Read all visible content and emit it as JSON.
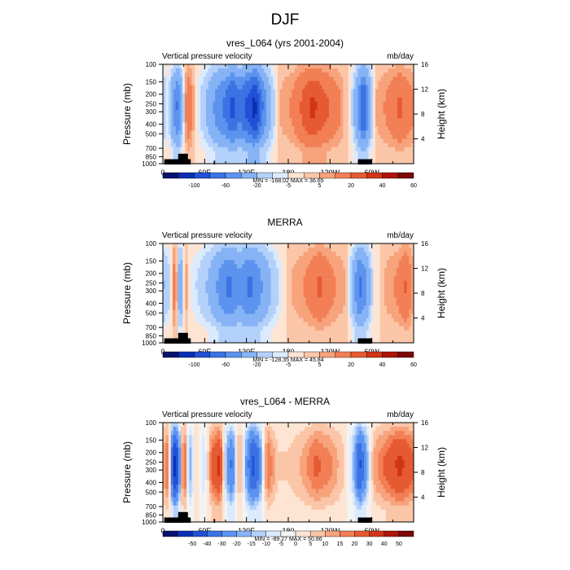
{
  "figure_title": "DJF",
  "chart_data": [
    {
      "type": "heatmap",
      "title": "vres_L064 (yrs 2001-2004)",
      "left_label": "Vertical pressure velocity",
      "right_label": "mb/day",
      "ylabel": "Pressure (mb)",
      "ylabel_right": "Height (km)",
      "xticks": [
        "0",
        "60E",
        "120E",
        "180",
        "120W",
        "60W"
      ],
      "yticks": [
        "100",
        "150",
        "200",
        "250",
        "300",
        "400",
        "500",
        "700",
        "850",
        "1000"
      ],
      "yticks_right": [
        "4",
        "8",
        "12",
        "16"
      ],
      "stats": "MIN = -168.02  MAX =  36.65",
      "colorbar_ticks": [
        "-100",
        "-60",
        "-20",
        "-5",
        "5",
        "20",
        "40",
        "60"
      ],
      "levels": [
        -120,
        -100,
        -80,
        -60,
        -40,
        -20,
        -10,
        -5,
        0,
        5,
        10,
        20,
        30,
        40,
        50,
        60
      ],
      "fields": {
        "columns": [
          {
            "lon": 0,
            "v": -20
          },
          {
            "lon": 8,
            "v": -5
          },
          {
            "lon": 15,
            "v": -40
          },
          {
            "lon": 22,
            "v": -60
          },
          {
            "lon": 28,
            "v": -20
          },
          {
            "lon": 35,
            "v": 20
          },
          {
            "lon": 42,
            "v": 10
          },
          {
            "lon": 50,
            "v": -5
          },
          {
            "lon": 62,
            "v": -20
          },
          {
            "lon": 75,
            "v": -40
          },
          {
            "lon": 90,
            "v": -60
          },
          {
            "lon": 100,
            "v": -80
          },
          {
            "lon": 110,
            "v": -60
          },
          {
            "lon": 122,
            "v": -80
          },
          {
            "lon": 132,
            "v": -100
          },
          {
            "lon": 142,
            "v": -60
          },
          {
            "lon": 155,
            "v": -20
          },
          {
            "lon": 168,
            "v": 5
          },
          {
            "lon": 185,
            "v": 10
          },
          {
            "lon": 200,
            "v": 20
          },
          {
            "lon": 215,
            "v": 30
          },
          {
            "lon": 235,
            "v": 20
          },
          {
            "lon": 255,
            "v": 10
          },
          {
            "lon": 270,
            "v": -5
          },
          {
            "lon": 280,
            "v": -40
          },
          {
            "lon": 288,
            "v": -80
          },
          {
            "lon": 295,
            "v": -40
          },
          {
            "lon": 305,
            "v": 5
          },
          {
            "lon": 320,
            "v": 10
          },
          {
            "lon": 340,
            "v": 20
          },
          {
            "lon": 360,
            "v": 10
          }
        ]
      }
    },
    {
      "type": "heatmap",
      "title": "MERRA",
      "left_label": "Vertical pressure velocity",
      "right_label": "mb/day",
      "ylabel": "Pressure (mb)",
      "ylabel_right": "Height (km)",
      "xticks": [
        "0",
        "60E",
        "120E",
        "180",
        "120W",
        "60W"
      ],
      "yticks": [
        "100",
        "150",
        "200",
        "250",
        "300",
        "400",
        "500",
        "700",
        "850",
        "1000"
      ],
      "yticks_right": [
        "4",
        "8",
        "12",
        "16"
      ],
      "stats": "MIN = -128.35  MAX =  45.84",
      "colorbar_ticks": [
        "-100",
        "-60",
        "-20",
        "-5",
        "5",
        "20",
        "40",
        "60"
      ],
      "levels": [
        -120,
        -100,
        -80,
        -60,
        -40,
        -20,
        -10,
        -5,
        0,
        5,
        10,
        20,
        30,
        40,
        50,
        60
      ],
      "fields": {
        "columns": [
          {
            "lon": 0,
            "v": -20
          },
          {
            "lon": 10,
            "v": -10
          },
          {
            "lon": 18,
            "v": 20
          },
          {
            "lon": 25,
            "v": -40
          },
          {
            "lon": 32,
            "v": 10
          },
          {
            "lon": 40,
            "v": -5
          },
          {
            "lon": 50,
            "v": -10
          },
          {
            "lon": 65,
            "v": -20
          },
          {
            "lon": 80,
            "v": -40
          },
          {
            "lon": 95,
            "v": -60
          },
          {
            "lon": 110,
            "v": -40
          },
          {
            "lon": 125,
            "v": -60
          },
          {
            "lon": 140,
            "v": -40
          },
          {
            "lon": 155,
            "v": -20
          },
          {
            "lon": 170,
            "v": -5
          },
          {
            "lon": 185,
            "v": 5
          },
          {
            "lon": 205,
            "v": 10
          },
          {
            "lon": 225,
            "v": 20
          },
          {
            "lon": 245,
            "v": 10
          },
          {
            "lon": 262,
            "v": 5
          },
          {
            "lon": 272,
            "v": -20
          },
          {
            "lon": 282,
            "v": -60
          },
          {
            "lon": 292,
            "v": -40
          },
          {
            "lon": 302,
            "v": -5
          },
          {
            "lon": 318,
            "v": 5
          },
          {
            "lon": 335,
            "v": 10
          },
          {
            "lon": 350,
            "v": 20
          },
          {
            "lon": 360,
            "v": 5
          }
        ]
      }
    },
    {
      "type": "heatmap",
      "title": "vres_L064 - MERRA",
      "left_label": "Vertical pressure velocity",
      "right_label": "mb/day",
      "ylabel": "Pressure (mb)",
      "ylabel_right": "Height (km)",
      "xticks": [
        "0",
        "60E",
        "120E",
        "180",
        "120W",
        "60W"
      ],
      "yticks": [
        "100",
        "150",
        "200",
        "250",
        "300",
        "400",
        "500",
        "700",
        "850",
        "1000"
      ],
      "yticks_right": [
        "4",
        "8",
        "12",
        "16"
      ],
      "stats": "MIN = -89.27  MAX =  50.86",
      "colorbar_ticks": [
        "-50",
        "-40",
        "-30",
        "-20",
        "-15",
        "-10",
        "-5",
        "0",
        "5",
        "10",
        "15",
        "20",
        "30",
        "40",
        "50"
      ],
      "levels": [
        -60,
        -50,
        -40,
        -30,
        -20,
        -15,
        -10,
        -5,
        0,
        5,
        10,
        15,
        20,
        30,
        40,
        50,
        60
      ],
      "fields": {
        "columns": [
          {
            "lon": 0,
            "v": 10
          },
          {
            "lon": 8,
            "v": 20
          },
          {
            "lon": 15,
            "v": -50
          },
          {
            "lon": 22,
            "v": -40
          },
          {
            "lon": 30,
            "v": 30
          },
          {
            "lon": 38,
            "v": -20
          },
          {
            "lon": 48,
            "v": 5
          },
          {
            "lon": 60,
            "v": -10
          },
          {
            "lon": 70,
            "v": 20
          },
          {
            "lon": 82,
            "v": 30
          },
          {
            "lon": 92,
            "v": -20
          },
          {
            "lon": 100,
            "v": -30
          },
          {
            "lon": 110,
            "v": 15
          },
          {
            "lon": 118,
            "v": -15
          },
          {
            "lon": 128,
            "v": -40
          },
          {
            "lon": 138,
            "v": -30
          },
          {
            "lon": 150,
            "v": 20
          },
          {
            "lon": 165,
            "v": 5
          },
          {
            "lon": 180,
            "v": 5
          },
          {
            "lon": 200,
            "v": 10
          },
          {
            "lon": 220,
            "v": 20
          },
          {
            "lon": 240,
            "v": 15
          },
          {
            "lon": 260,
            "v": 5
          },
          {
            "lon": 272,
            "v": -10
          },
          {
            "lon": 282,
            "v": -40
          },
          {
            "lon": 292,
            "v": -20
          },
          {
            "lon": 302,
            "v": 10
          },
          {
            "lon": 320,
            "v": 20
          },
          {
            "lon": 340,
            "v": 30
          },
          {
            "lon": 360,
            "v": 20
          }
        ]
      }
    }
  ]
}
